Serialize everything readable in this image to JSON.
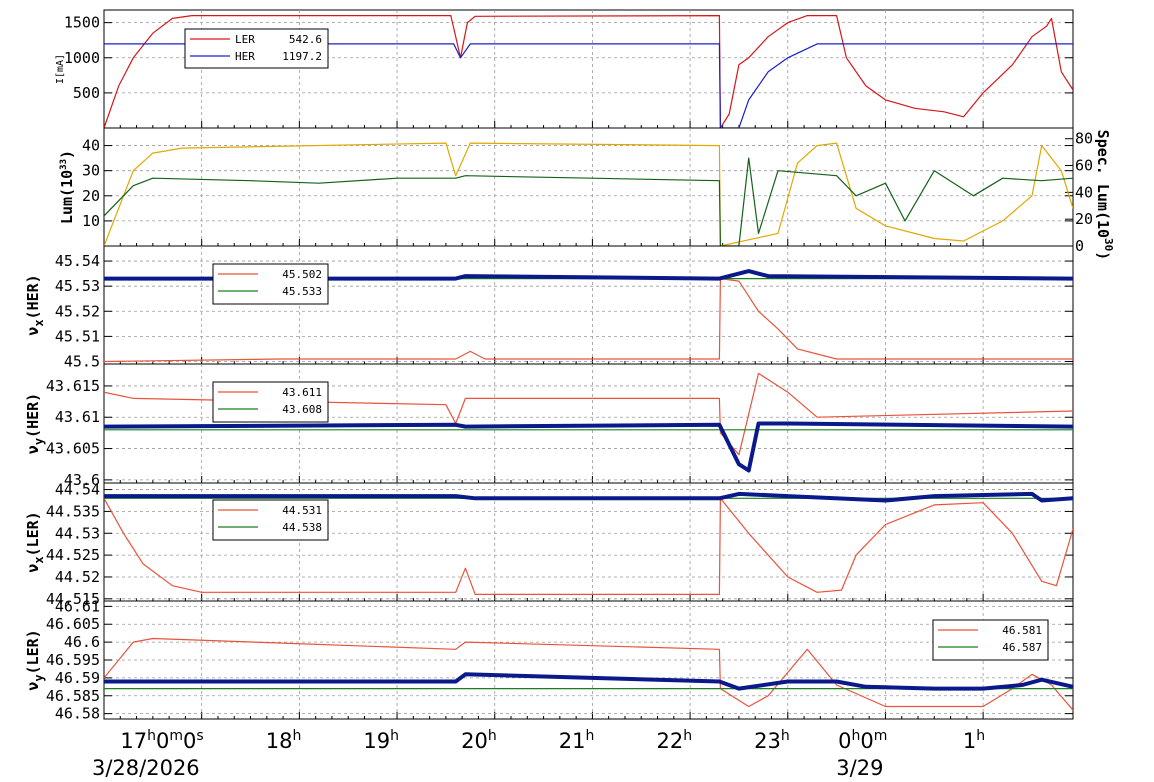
{
  "colors": {
    "ler": "#d6161a",
    "her": "#1a20c8",
    "tune_red": "#e8533a",
    "tune_green": "#17801a",
    "tune_blue": "#0a1a8a",
    "lum_gold": "#e0a800",
    "lum_green": "#12621a",
    "grid": "#9a9a9a"
  },
  "chart_data": [
    {
      "type": "line",
      "ylabel": "I[mA]",
      "yticks": [
        "500",
        "1000",
        "1500"
      ],
      "ylim": [
        0,
        1680
      ],
      "legend": [
        {
          "name": "LER",
          "value": "542.6"
        },
        {
          "name": "HER",
          "value": "1197.2"
        }
      ],
      "series": [
        {
          "name": "LER",
          "color": "ler",
          "points": [
            [
              0,
              0
            ],
            [
              0.15,
              600
            ],
            [
              0.3,
              1000
            ],
            [
              0.5,
              1350
            ],
            [
              0.7,
              1560
            ],
            [
              0.9,
              1600
            ],
            [
              3.55,
              1600
            ],
            [
              3.6,
              1300
            ],
            [
              3.65,
              1000
            ],
            [
              3.72,
              1500
            ],
            [
              3.8,
              1590
            ],
            [
              6.3,
              1600
            ],
            [
              6.31,
              0
            ],
            [
              6.4,
              200
            ],
            [
              6.5,
              900
            ],
            [
              6.6,
              1000
            ],
            [
              6.8,
              1300
            ],
            [
              7.0,
              1500
            ],
            [
              7.2,
              1600
            ],
            [
              7.5,
              1600
            ],
            [
              7.6,
              1000
            ],
            [
              7.8,
              600
            ],
            [
              8.0,
              400
            ],
            [
              8.3,
              280
            ],
            [
              8.6,
              230
            ],
            [
              8.8,
              160
            ],
            [
              9.0,
              500
            ],
            [
              9.3,
              900
            ],
            [
              9.5,
              1300
            ],
            [
              9.65,
              1450
            ],
            [
              9.7,
              1560
            ],
            [
              9.8,
              800
            ],
            [
              9.92,
              542.6
            ]
          ]
        },
        {
          "name": "HER",
          "color": "her",
          "points": [
            [
              0,
              1197.2
            ],
            [
              3.58,
              1197.2
            ],
            [
              3.65,
              1000
            ],
            [
              3.75,
              1197.2
            ],
            [
              6.3,
              1197.2
            ],
            [
              6.31,
              0
            ],
            [
              6.5,
              0
            ],
            [
              6.6,
              400
            ],
            [
              6.8,
              800
            ],
            [
              7.0,
              1000
            ],
            [
              7.3,
              1197.2
            ],
            [
              9.92,
              1197.2
            ]
          ]
        }
      ]
    },
    {
      "type": "line",
      "ylabel": "Lum(10^33)",
      "ylabel2": "Spec. Lum(10^30)",
      "yticks": [
        "10",
        "20",
        "30",
        "40"
      ],
      "yticks2": [
        "0",
        "20",
        "40",
        "60",
        "80"
      ],
      "ylim": [
        0,
        47
      ],
      "ylim2": [
        0,
        88
      ],
      "series": [
        {
          "name": "Spec. Lum",
          "color": "lum_gold",
          "points": [
            [
              0,
              0
            ],
            [
              0.3,
              30
            ],
            [
              0.5,
              37
            ],
            [
              0.8,
              39
            ],
            [
              3.5,
              41
            ],
            [
              3.6,
              28
            ],
            [
              3.75,
              41
            ],
            [
              6.3,
              40
            ],
            [
              6.31,
              0
            ],
            [
              6.9,
              5
            ],
            [
              7.1,
              33
            ],
            [
              7.3,
              40
            ],
            [
              7.5,
              41
            ],
            [
              7.7,
              15
            ],
            [
              8.0,
              8
            ],
            [
              8.5,
              3
            ],
            [
              8.8,
              2
            ],
            [
              9.2,
              10
            ],
            [
              9.5,
              20
            ],
            [
              9.6,
              40
            ],
            [
              9.8,
              30
            ],
            [
              9.92,
              15
            ]
          ]
        },
        {
          "name": "Lum",
          "color": "lum_green",
          "points": [
            [
              0,
              12
            ],
            [
              0.3,
              24
            ],
            [
              0.5,
              27
            ],
            [
              1.5,
              26
            ],
            [
              2.2,
              25
            ],
            [
              3.0,
              27
            ],
            [
              3.6,
              27
            ],
            [
              3.7,
              28
            ],
            [
              6.3,
              26
            ],
            [
              6.31,
              0
            ],
            [
              6.5,
              0
            ],
            [
              6.6,
              35
            ],
            [
              6.7,
              5
            ],
            [
              6.9,
              30
            ],
            [
              7.5,
              28
            ],
            [
              7.7,
              20
            ],
            [
              8.0,
              25
            ],
            [
              8.2,
              10
            ],
            [
              8.5,
              30
            ],
            [
              8.9,
              20
            ],
            [
              9.2,
              27
            ],
            [
              9.6,
              26
            ],
            [
              9.92,
              27
            ]
          ]
        }
      ]
    },
    {
      "type": "line",
      "ylabel": "ν_x(HER)",
      "yticks": [
        "45.5",
        "45.51",
        "45.52",
        "45.53",
        "45.54"
      ],
      "ylim": [
        45.499,
        45.546
      ],
      "legend": [
        {
          "name": "red",
          "value": "45.502"
        },
        {
          "name": "green",
          "value": "45.533"
        }
      ],
      "series": [
        {
          "name": "red",
          "color": "tune_red",
          "points": [
            [
              0,
              45.5
            ],
            [
              1.8,
              45.501
            ],
            [
              3.6,
              45.501
            ],
            [
              3.75,
              45.504
            ],
            [
              3.9,
              45.501
            ],
            [
              6.3,
              45.501
            ],
            [
              6.31,
              45.533
            ],
            [
              6.5,
              45.532
            ],
            [
              6.7,
              45.52
            ],
            [
              6.9,
              45.513
            ],
            [
              7.1,
              45.505
            ],
            [
              7.5,
              45.501
            ],
            [
              9.92,
              45.501
            ]
          ]
        },
        {
          "name": "green",
          "color": "tune_green",
          "points": [
            [
              0,
              45.533
            ],
            [
              9.92,
              45.533
            ]
          ]
        },
        {
          "name": "blue",
          "color": "tune_blue",
          "points": [
            [
              0,
              45.533
            ],
            [
              3.6,
              45.533
            ],
            [
              3.7,
              45.534
            ],
            [
              6.3,
              45.533
            ],
            [
              6.5,
              45.535
            ],
            [
              6.6,
              45.536
            ],
            [
              6.8,
              45.534
            ],
            [
              9.92,
              45.533
            ]
          ]
        }
      ]
    },
    {
      "type": "line",
      "ylabel": "ν_y(HER)",
      "yticks": [
        "43.6",
        "43.605",
        "43.61",
        "43.615"
      ],
      "ylim": [
        43.5995,
        43.6185
      ],
      "legend": [
        {
          "name": "red",
          "value": "43.611"
        },
        {
          "name": "green",
          "value": "43.608"
        }
      ],
      "series": [
        {
          "name": "red",
          "color": "tune_red",
          "points": [
            [
              0,
              43.614
            ],
            [
              0.3,
              43.613
            ],
            [
              3.5,
              43.612
            ],
            [
              3.6,
              43.609
            ],
            [
              3.7,
              43.613
            ],
            [
              6.3,
              43.613
            ],
            [
              6.31,
              43.6075
            ],
            [
              6.5,
              43.604
            ],
            [
              6.7,
              43.617
            ],
            [
              7.0,
              43.614
            ],
            [
              7.3,
              43.61
            ],
            [
              9.92,
              43.611
            ]
          ]
        },
        {
          "name": "green",
          "color": "tune_green",
          "points": [
            [
              0,
              43.608
            ],
            [
              9.92,
              43.608
            ]
          ]
        },
        {
          "name": "blue",
          "color": "tune_blue",
          "points": [
            [
              0,
              43.6085
            ],
            [
              3.6,
              43.6088
            ],
            [
              3.7,
              43.6085
            ],
            [
              6.3,
              43.6088
            ],
            [
              6.5,
              43.6025
            ],
            [
              6.6,
              43.6015
            ],
            [
              6.7,
              43.609
            ],
            [
              7.0,
              43.609
            ],
            [
              9.92,
              43.6085
            ]
          ]
        }
      ]
    },
    {
      "type": "line",
      "ylabel": "ν_x(LER)",
      "yticks": [
        "44.515",
        "44.52",
        "44.525",
        "44.53",
        "44.535",
        "44.54"
      ],
      "ylim": [
        44.5145,
        44.5415
      ],
      "legend": [
        {
          "name": "red",
          "value": "44.531"
        },
        {
          "name": "green",
          "value": "44.538"
        }
      ],
      "series": [
        {
          "name": "red",
          "color": "tune_red",
          "points": [
            [
              0,
              44.538
            ],
            [
              0.2,
              44.53
            ],
            [
              0.4,
              44.523
            ],
            [
              0.7,
              44.518
            ],
            [
              1.0,
              44.5165
            ],
            [
              3.6,
              44.5165
            ],
            [
              3.7,
              44.522
            ],
            [
              3.8,
              44.516
            ],
            [
              6.3,
              44.516
            ],
            [
              6.31,
              44.538
            ],
            [
              6.6,
              44.53
            ],
            [
              7.0,
              44.52
            ],
            [
              7.3,
              44.5165
            ],
            [
              7.55,
              44.517
            ],
            [
              7.7,
              44.525
            ],
            [
              8.0,
              44.532
            ],
            [
              8.5,
              44.5365
            ],
            [
              9.0,
              44.537
            ],
            [
              9.3,
              44.53
            ],
            [
              9.6,
              44.519
            ],
            [
              9.75,
              44.518
            ],
            [
              9.92,
              44.531
            ]
          ]
        },
        {
          "name": "green",
          "color": "tune_green",
          "points": [
            [
              0,
              44.538
            ],
            [
              9.92,
              44.538
            ]
          ]
        },
        {
          "name": "blue",
          "color": "tune_blue",
          "points": [
            [
              0,
              44.5385
            ],
            [
              3.6,
              44.5385
            ],
            [
              3.8,
              44.538
            ],
            [
              6.3,
              44.538
            ],
            [
              6.5,
              44.539
            ],
            [
              7.0,
              44.5385
            ],
            [
              8.0,
              44.5375
            ],
            [
              8.5,
              44.5385
            ],
            [
              9.5,
              44.539
            ],
            [
              9.6,
              44.5375
            ],
            [
              9.92,
              44.538
            ]
          ]
        }
      ]
    },
    {
      "type": "line",
      "ylabel": "ν_y(LER)",
      "yticks": [
        "46.58",
        "46.585",
        "46.59",
        "46.595",
        "46.6",
        "46.605",
        "46.61"
      ],
      "ylim": [
        46.5785,
        46.6115
      ],
      "legend": [
        {
          "name": "red",
          "value": "46.581"
        },
        {
          "name": "green",
          "value": "46.587"
        }
      ],
      "series": [
        {
          "name": "red",
          "color": "tune_red",
          "points": [
            [
              0,
              46.59
            ],
            [
              0.3,
              46.6
            ],
            [
              0.5,
              46.601
            ],
            [
              3.6,
              46.598
            ],
            [
              3.7,
              46.6
            ],
            [
              6.3,
              46.598
            ],
            [
              6.31,
              46.587
            ],
            [
              6.6,
              46.582
            ],
            [
              6.8,
              46.585
            ],
            [
              7.2,
              46.598
            ],
            [
              7.5,
              46.588
            ],
            [
              8.0,
              46.582
            ],
            [
              9.0,
              46.582
            ],
            [
              9.3,
              46.587
            ],
            [
              9.5,
              46.591
            ],
            [
              9.7,
              46.588
            ],
            [
              9.92,
              46.581
            ]
          ]
        },
        {
          "name": "green",
          "color": "tune_green",
          "points": [
            [
              0,
              46.587
            ],
            [
              9.92,
              46.587
            ]
          ]
        },
        {
          "name": "blue",
          "color": "tune_blue",
          "points": [
            [
              0,
              46.589
            ],
            [
              3.6,
              46.589
            ],
            [
              3.7,
              46.591
            ],
            [
              6.3,
              46.589
            ],
            [
              6.5,
              46.587
            ],
            [
              7.0,
              46.589
            ],
            [
              7.5,
              46.589
            ],
            [
              7.8,
              46.5875
            ],
            [
              8.5,
              46.587
            ],
            [
              9.0,
              46.587
            ],
            [
              9.4,
              46.588
            ],
            [
              9.6,
              46.5895
            ],
            [
              9.92,
              46.5875
            ]
          ]
        }
      ]
    }
  ],
  "x_axis": {
    "xlim": [
      0,
      9.92
    ],
    "ticks": [
      {
        "x": 1.0,
        "label": "17h0m0s"
      },
      {
        "x": 2.0,
        "label": "18h"
      },
      {
        "x": 3.0,
        "label": "19h"
      },
      {
        "x": 4.0,
        "label": "20h"
      },
      {
        "x": 5.0,
        "label": "21h"
      },
      {
        "x": 6.0,
        "label": "22h"
      },
      {
        "x": 7.0,
        "label": "23h"
      },
      {
        "x": 8.0,
        "label": "0h0m"
      },
      {
        "x": 9.0,
        "label": "1h"
      }
    ],
    "dates": [
      {
        "x": 1.0,
        "label": "3/28/2026"
      },
      {
        "x": 8.0,
        "label": "3/29"
      }
    ]
  }
}
